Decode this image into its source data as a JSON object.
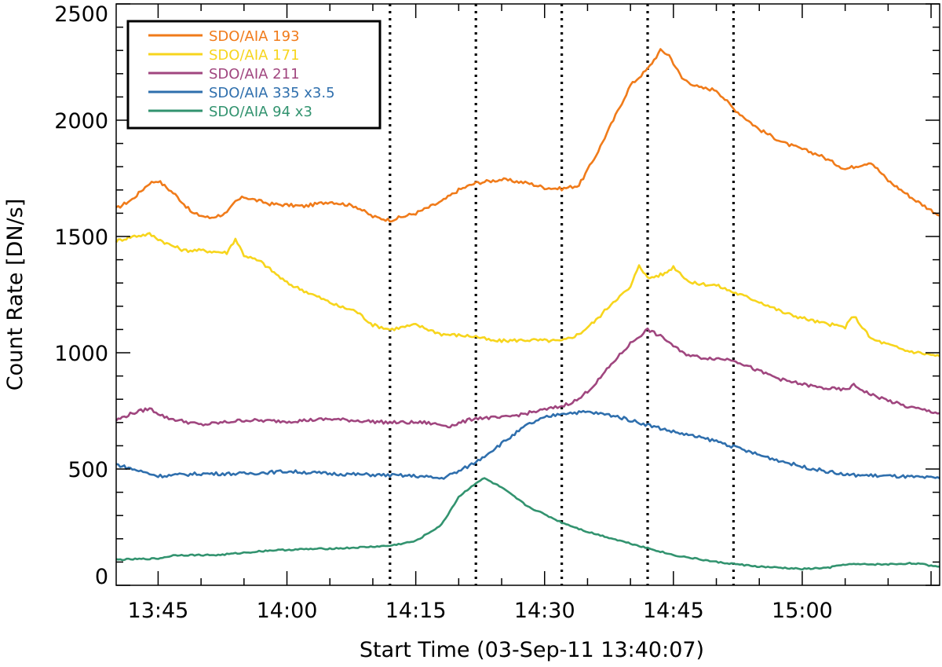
{
  "chart_data": {
    "type": "line",
    "title": "",
    "xlabel": "Start Time (03-Sep-11 13:40:07)",
    "ylabel": "Count Rate [DN/s]",
    "xlim": [
      "13:40:07",
      "15:16:00"
    ],
    "ylim": [
      0,
      2500
    ],
    "grid": false,
    "legend_position": "top-left",
    "x_tick_labels": [
      "13:45",
      "14:00",
      "14:15",
      "14:30",
      "14:45",
      "15:00"
    ],
    "y_tick_labels": [
      "0",
      "500",
      "1000",
      "1500",
      "2000",
      "2500"
    ],
    "vertical_markers": [
      "14:12:00",
      "14:22:00",
      "14:32:00",
      "14:42:00",
      "14:52:00"
    ],
    "series": [
      {
        "name": "SDO/AIA 193",
        "color": "#f07b1a",
        "points": [
          [
            "13:40:07",
            1620
          ],
          [
            "13:42:00",
            1660
          ],
          [
            "13:44:00",
            1730
          ],
          [
            "13:45:00",
            1740
          ],
          [
            "13:47:00",
            1680
          ],
          [
            "13:49:00",
            1600
          ],
          [
            "13:51:00",
            1580
          ],
          [
            "13:53:00",
            1600
          ],
          [
            "13:54:00",
            1650
          ],
          [
            "13:55:00",
            1670
          ],
          [
            "13:58:00",
            1640
          ],
          [
            "14:02:00",
            1630
          ],
          [
            "14:05:00",
            1650
          ],
          [
            "14:08:00",
            1630
          ],
          [
            "14:10:00",
            1585
          ],
          [
            "14:12:00",
            1570
          ],
          [
            "14:15:00",
            1600
          ],
          [
            "14:18:00",
            1650
          ],
          [
            "14:20:00",
            1700
          ],
          [
            "14:22:00",
            1730
          ],
          [
            "14:25:00",
            1745
          ],
          [
            "14:28:00",
            1730
          ],
          [
            "14:30:00",
            1710
          ],
          [
            "14:32:00",
            1705
          ],
          [
            "14:34:00",
            1720
          ],
          [
            "14:36:00",
            1850
          ],
          [
            "14:38:00",
            2000
          ],
          [
            "14:40:00",
            2150
          ],
          [
            "14:42:00",
            2220
          ],
          [
            "14:43:30",
            2300
          ],
          [
            "14:44:30",
            2280
          ],
          [
            "14:46:00",
            2180
          ],
          [
            "14:48:00",
            2140
          ],
          [
            "14:50:00",
            2130
          ],
          [
            "14:52:00",
            2050
          ],
          [
            "14:55:00",
            1960
          ],
          [
            "14:58:00",
            1900
          ],
          [
            "15:02:00",
            1850
          ],
          [
            "15:05:00",
            1790
          ],
          [
            "15:08:00",
            1820
          ],
          [
            "15:10:00",
            1740
          ],
          [
            "15:13:00",
            1660
          ],
          [
            "15:16:00",
            1590
          ]
        ]
      },
      {
        "name": "SDO/AIA 171",
        "color": "#f7d51d",
        "points": [
          [
            "13:40:07",
            1480
          ],
          [
            "13:42:00",
            1500
          ],
          [
            "13:44:00",
            1510
          ],
          [
            "13:46:00",
            1470
          ],
          [
            "13:48:00",
            1440
          ],
          [
            "13:50:00",
            1440
          ],
          [
            "13:53:00",
            1430
          ],
          [
            "13:54:00",
            1490
          ],
          [
            "13:55:00",
            1420
          ],
          [
            "13:57:00",
            1390
          ],
          [
            "14:00:00",
            1300
          ],
          [
            "14:03:00",
            1250
          ],
          [
            "14:06:00",
            1200
          ],
          [
            "14:08:00",
            1180
          ],
          [
            "14:10:00",
            1120
          ],
          [
            "14:12:00",
            1100
          ],
          [
            "14:15:00",
            1120
          ],
          [
            "14:18:00",
            1080
          ],
          [
            "14:22:00",
            1070
          ],
          [
            "14:24:00",
            1050
          ],
          [
            "14:28:00",
            1055
          ],
          [
            "14:32:00",
            1050
          ],
          [
            "14:34:00",
            1080
          ],
          [
            "14:36:00",
            1140
          ],
          [
            "14:38:00",
            1220
          ],
          [
            "14:40:00",
            1280
          ],
          [
            "14:41:00",
            1380
          ],
          [
            "14:42:00",
            1320
          ],
          [
            "14:44:00",
            1340
          ],
          [
            "14:45:00",
            1370
          ],
          [
            "14:47:00",
            1300
          ],
          [
            "14:50:00",
            1290
          ],
          [
            "14:52:00",
            1260
          ],
          [
            "14:55:00",
            1220
          ],
          [
            "14:58:00",
            1170
          ],
          [
            "15:02:00",
            1130
          ],
          [
            "15:05:00",
            1110
          ],
          [
            "15:06:00",
            1160
          ],
          [
            "15:08:00",
            1060
          ],
          [
            "15:12:00",
            1010
          ],
          [
            "15:16:00",
            985
          ]
        ]
      },
      {
        "name": "SDO/AIA 211",
        "color": "#a0467f",
        "points": [
          [
            "13:40:07",
            710
          ],
          [
            "13:42:00",
            740
          ],
          [
            "13:44:00",
            760
          ],
          [
            "13:46:00",
            720
          ],
          [
            "13:50:00",
            690
          ],
          [
            "13:55:00",
            710
          ],
          [
            "14:00:00",
            705
          ],
          [
            "14:05:00",
            715
          ],
          [
            "14:12:00",
            700
          ],
          [
            "14:16:00",
            700
          ],
          [
            "14:19:00",
            685
          ],
          [
            "14:22:00",
            720
          ],
          [
            "14:25:00",
            720
          ],
          [
            "14:28:00",
            740
          ],
          [
            "14:32:00",
            770
          ],
          [
            "14:34:00",
            800
          ],
          [
            "14:36:00",
            870
          ],
          [
            "14:38:00",
            960
          ],
          [
            "14:40:00",
            1040
          ],
          [
            "14:42:00",
            1100
          ],
          [
            "14:44:00",
            1060
          ],
          [
            "14:46:00",
            1000
          ],
          [
            "14:48:00",
            980
          ],
          [
            "14:52:00",
            970
          ],
          [
            "14:55:00",
            920
          ],
          [
            "14:58:00",
            880
          ],
          [
            "15:02:00",
            850
          ],
          [
            "15:05:00",
            840
          ],
          [
            "15:06:00",
            860
          ],
          [
            "15:08:00",
            820
          ],
          [
            "15:12:00",
            770
          ],
          [
            "15:16:00",
            740
          ]
        ]
      },
      {
        "name": "SDO/AIA 335 x3.5",
        "color": "#2f6fad",
        "points": [
          [
            "13:40:07",
            520
          ],
          [
            "13:42:00",
            500
          ],
          [
            "13:45:00",
            470
          ],
          [
            "13:50:00",
            480
          ],
          [
            "13:55:00",
            480
          ],
          [
            "14:00:00",
            490
          ],
          [
            "14:05:00",
            480
          ],
          [
            "14:10:00",
            475
          ],
          [
            "14:15:00",
            470
          ],
          [
            "14:18:00",
            460
          ],
          [
            "14:20:00",
            490
          ],
          [
            "14:22:00",
            530
          ],
          [
            "14:25:00",
            610
          ],
          [
            "14:28:00",
            690
          ],
          [
            "14:30:00",
            720
          ],
          [
            "14:32:00",
            740
          ],
          [
            "14:35:00",
            745
          ],
          [
            "14:38:00",
            730
          ],
          [
            "14:42:00",
            690
          ],
          [
            "14:45:00",
            660
          ],
          [
            "14:50:00",
            620
          ],
          [
            "14:55:00",
            560
          ],
          [
            "15:00:00",
            510
          ],
          [
            "15:05:00",
            475
          ],
          [
            "15:10:00",
            470
          ],
          [
            "15:16:00",
            460
          ]
        ]
      },
      {
        "name": "SDO/AIA 94 x3",
        "color": "#32936f",
        "points": [
          [
            "13:40:07",
            110
          ],
          [
            "13:45:00",
            115
          ],
          [
            "13:47:00",
            130
          ],
          [
            "13:52:00",
            130
          ],
          [
            "13:58:00",
            150
          ],
          [
            "14:02:00",
            155
          ],
          [
            "14:07:00",
            160
          ],
          [
            "14:12:00",
            170
          ],
          [
            "14:15:00",
            190
          ],
          [
            "14:18:00",
            260
          ],
          [
            "14:20:00",
            380
          ],
          [
            "14:22:00",
            440
          ],
          [
            "14:23:00",
            460
          ],
          [
            "14:25:00",
            420
          ],
          [
            "14:28:00",
            340
          ],
          [
            "14:32:00",
            270
          ],
          [
            "14:35:00",
            230
          ],
          [
            "14:40:00",
            180
          ],
          [
            "14:45:00",
            130
          ],
          [
            "14:50:00",
            100
          ],
          [
            "14:55:00",
            80
          ],
          [
            "15:00:00",
            70
          ],
          [
            "15:03:00",
            75
          ],
          [
            "15:05:00",
            90
          ],
          [
            "15:10:00",
            90
          ],
          [
            "15:13:00",
            95
          ],
          [
            "15:16:00",
            80
          ]
        ]
      }
    ]
  }
}
